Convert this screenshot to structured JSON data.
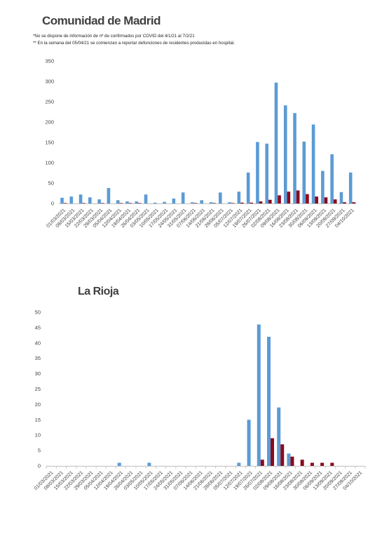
{
  "colors": {
    "confirmed": "#5b9bd5",
    "deaths": "#8b0a1e",
    "axis": "#bfbfbf"
  },
  "notes": [
    "*No se dispone de información de nº de confirmados por COVID del 4/1/21 al 7/2/21",
    "** En la semana del 05/04/21 se comienzan a reportar defunciones de residentes producidas en hospital."
  ],
  "chart_data": [
    {
      "type": "bar",
      "title": "Comunidad de Madrid",
      "ylim": [
        0,
        350
      ],
      "yticks": [
        0,
        50,
        100,
        150,
        200,
        250,
        300,
        350
      ],
      "grid": false,
      "categories": [
        "01/03/2021",
        "08/03/2021",
        "15/03/2021",
        "22/03/2021",
        "29/03/2021",
        "05/04/2021",
        "12/04/2021",
        "19/04/2021",
        "26/04/2021",
        "03/05/2021",
        "10/05/2021",
        "17/05/2021",
        "24/05/2021",
        "31/05/2021",
        "07/06/2021",
        "14/06/2021",
        "21/06/2021",
        "28/06/2021",
        "05/07/2021",
        "12/07/2021",
        "19/07/2021",
        "26/07/2021",
        "02/08/2021",
        "09/08/2021",
        "16/08/2021",
        "23/08/2021",
        "30/08/2021",
        "06/09/2021",
        "13/09/2021",
        "20/09/2021",
        "27/09/2021",
        "04/10/2021"
      ],
      "tick_labels": [
        "01/03/2021",
        "08/03/2021",
        "15/03/2021",
        "22/03/2021",
        "29/03/2021",
        "05/04/2021",
        "12/04/2021",
        "19/04/2021",
        "26/04/2021",
        "03/05/2021",
        "10/05/2021",
        "17/05/2021",
        "24/05/2021",
        "31/05/2021",
        "07/06/2021",
        "14/06/2021",
        "21/06/2021",
        "28/06/2021",
        "05/07/2021",
        "12/07/2021",
        "19/07/2021",
        "26/07/2021",
        "02/08/2021",
        "09/08/2021",
        "16/08/2021",
        "23/08/2021",
        "30/08/2021",
        "06/09/2021",
        "13/09/2021",
        "20/09/2021",
        "27/09/2021",
        "04/10/2021"
      ],
      "series": [
        {
          "values": [
            14,
            17,
            22,
            15,
            10,
            38,
            8,
            5,
            5,
            22,
            2,
            4,
            12,
            27,
            3,
            8,
            3,
            27,
            3,
            29,
            76,
            151,
            147,
            297,
            241,
            222,
            152,
            194,
            80,
            121,
            28,
            76
          ]
        },
        {
          "values": [
            1,
            0,
            1,
            0,
            1,
            0,
            1,
            1,
            1,
            0,
            0,
            0,
            0,
            0,
            1,
            0,
            1,
            0,
            1,
            2,
            2,
            5,
            9,
            20,
            29,
            32,
            23,
            17,
            15,
            10,
            3,
            3
          ]
        }
      ]
    },
    {
      "type": "bar",
      "title": "La Rioja",
      "ylim": [
        0,
        50
      ],
      "yticks": [
        0,
        5,
        10,
        15,
        20,
        25,
        30,
        35,
        40,
        45,
        50
      ],
      "grid": false,
      "categories": [
        "01/03/2021",
        "08/03/2021",
        "15/03/2021",
        "22/03/2021",
        "29/03/2021",
        "05/04/2021",
        "12/04/2021",
        "19/04/2021",
        "26/04/2021",
        "03/05/2021",
        "10/05/2021",
        "17/05/2021",
        "24/05/2021",
        "31/05/2021",
        "07/06/2021",
        "14/06/2021",
        "21/06/2021",
        "28/06/2021",
        "05/07/2021",
        "12/07/2021",
        "19/07/2021",
        "26/07/2021",
        "02/08/2021",
        "09/08/2021",
        "16/08/2021",
        "23/08/2021",
        "30/08/2021",
        "06/09/2021",
        "13/09/2021",
        "20/09/2021",
        "27/09/2021",
        "04/10/2021"
      ],
      "tick_labels": [
        "01/03/2021",
        "08/03/2021",
        "15/03/2021",
        "22/03/2021",
        "29/03/2021",
        "05/04/2021",
        "12/04/2021",
        "19/04/2021",
        "26/04/2021",
        "03/05/2021",
        "10/05/2021",
        "17/05/2021",
        "24/05/2021",
        "31/05/2021",
        "07/06/2021",
        "14/06/2021",
        "21/06/2021",
        "28/06/2021",
        "05/07/2021",
        "12/07/2021",
        "19/07/2021",
        "26/07/2021",
        "02/08/2021",
        "09/08/2021",
        "16/08/2021",
        "23/08/2021",
        "30/08/2021",
        "06/09/2021",
        "13/09/2021",
        "20/09/2021",
        "27/09/2021",
        "04/10/2021"
      ],
      "series": [
        {
          "values": [
            0,
            0,
            0,
            0,
            0,
            0,
            0,
            1,
            0,
            0,
            1,
            0,
            0,
            0,
            0,
            0,
            0,
            0,
            0,
            1,
            15,
            46,
            42,
            19,
            4,
            0,
            0,
            0,
            0,
            0,
            0,
            0
          ]
        },
        {
          "values": [
            0,
            0,
            0,
            0,
            0,
            0,
            0,
            0,
            0,
            0,
            0,
            0,
            0,
            0,
            0,
            0,
            0,
            0,
            0,
            0,
            0,
            2,
            9,
            7,
            3,
            2,
            1,
            1,
            1,
            0,
            0,
            0
          ]
        }
      ]
    }
  ]
}
